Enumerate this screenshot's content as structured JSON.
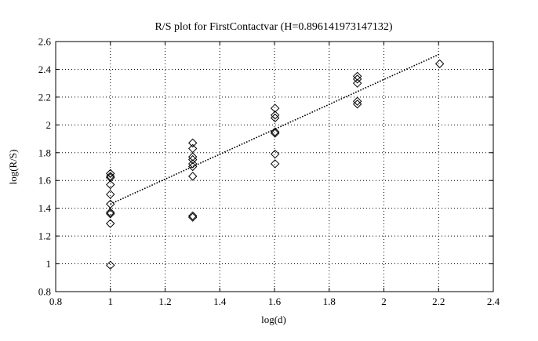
{
  "chart_data": {
    "type": "scatter",
    "title": "R/S plot for FirstContactvar (H=0.896141973147132)",
    "xlabel": "log(d)",
    "ylabel": "log(R/S)",
    "xlim": [
      0.8,
      2.4
    ],
    "ylim": [
      0.8,
      2.6
    ],
    "xticks": [
      0.8,
      1,
      1.2,
      1.4,
      1.6,
      1.8,
      2,
      2.2,
      2.4
    ],
    "xtick_labels": [
      "0.8",
      "1",
      "1.2",
      "1.4",
      "1.6",
      "1.8",
      "2",
      "2.2",
      "2.4"
    ],
    "yticks": [
      0.8,
      1,
      1.2,
      1.4,
      1.6,
      1.8,
      2,
      2.2,
      2.4,
      2.6
    ],
    "ytick_labels": [
      "0.8",
      "1",
      "1.2",
      "1.4",
      "1.6",
      "1.8",
      "2",
      "2.2",
      "2.4",
      "2.6"
    ],
    "grid": true,
    "marker": "diamond",
    "points": [
      {
        "x": 1.0,
        "y": 1.65
      },
      {
        "x": 1.0,
        "y": 1.63
      },
      {
        "x": 1.0,
        "y": 1.62
      },
      {
        "x": 1.0,
        "y": 1.57
      },
      {
        "x": 1.0,
        "y": 1.5
      },
      {
        "x": 1.0,
        "y": 1.43
      },
      {
        "x": 1.0,
        "y": 1.37
      },
      {
        "x": 1.0,
        "y": 1.36
      },
      {
        "x": 1.0,
        "y": 1.29
      },
      {
        "x": 1.0,
        "y": 0.99
      },
      {
        "x": 1.301,
        "y": 1.87
      },
      {
        "x": 1.301,
        "y": 1.83
      },
      {
        "x": 1.301,
        "y": 1.77
      },
      {
        "x": 1.301,
        "y": 1.75
      },
      {
        "x": 1.301,
        "y": 1.72
      },
      {
        "x": 1.301,
        "y": 1.7
      },
      {
        "x": 1.301,
        "y": 1.63
      },
      {
        "x": 1.301,
        "y": 1.345
      },
      {
        "x": 1.301,
        "y": 1.335
      },
      {
        "x": 1.602,
        "y": 2.12
      },
      {
        "x": 1.602,
        "y": 2.07
      },
      {
        "x": 1.602,
        "y": 2.05
      },
      {
        "x": 1.602,
        "y": 1.95
      },
      {
        "x": 1.602,
        "y": 1.94
      },
      {
        "x": 1.602,
        "y": 1.79
      },
      {
        "x": 1.602,
        "y": 1.72
      },
      {
        "x": 1.903,
        "y": 2.35
      },
      {
        "x": 1.903,
        "y": 2.33
      },
      {
        "x": 1.903,
        "y": 2.3
      },
      {
        "x": 1.903,
        "y": 2.17
      },
      {
        "x": 1.903,
        "y": 2.15
      },
      {
        "x": 2.204,
        "y": 2.44
      }
    ],
    "fit_line": {
      "style": "dotted",
      "x": [
        1.0,
        2.204
      ],
      "y": [
        1.43,
        2.51
      ]
    }
  }
}
